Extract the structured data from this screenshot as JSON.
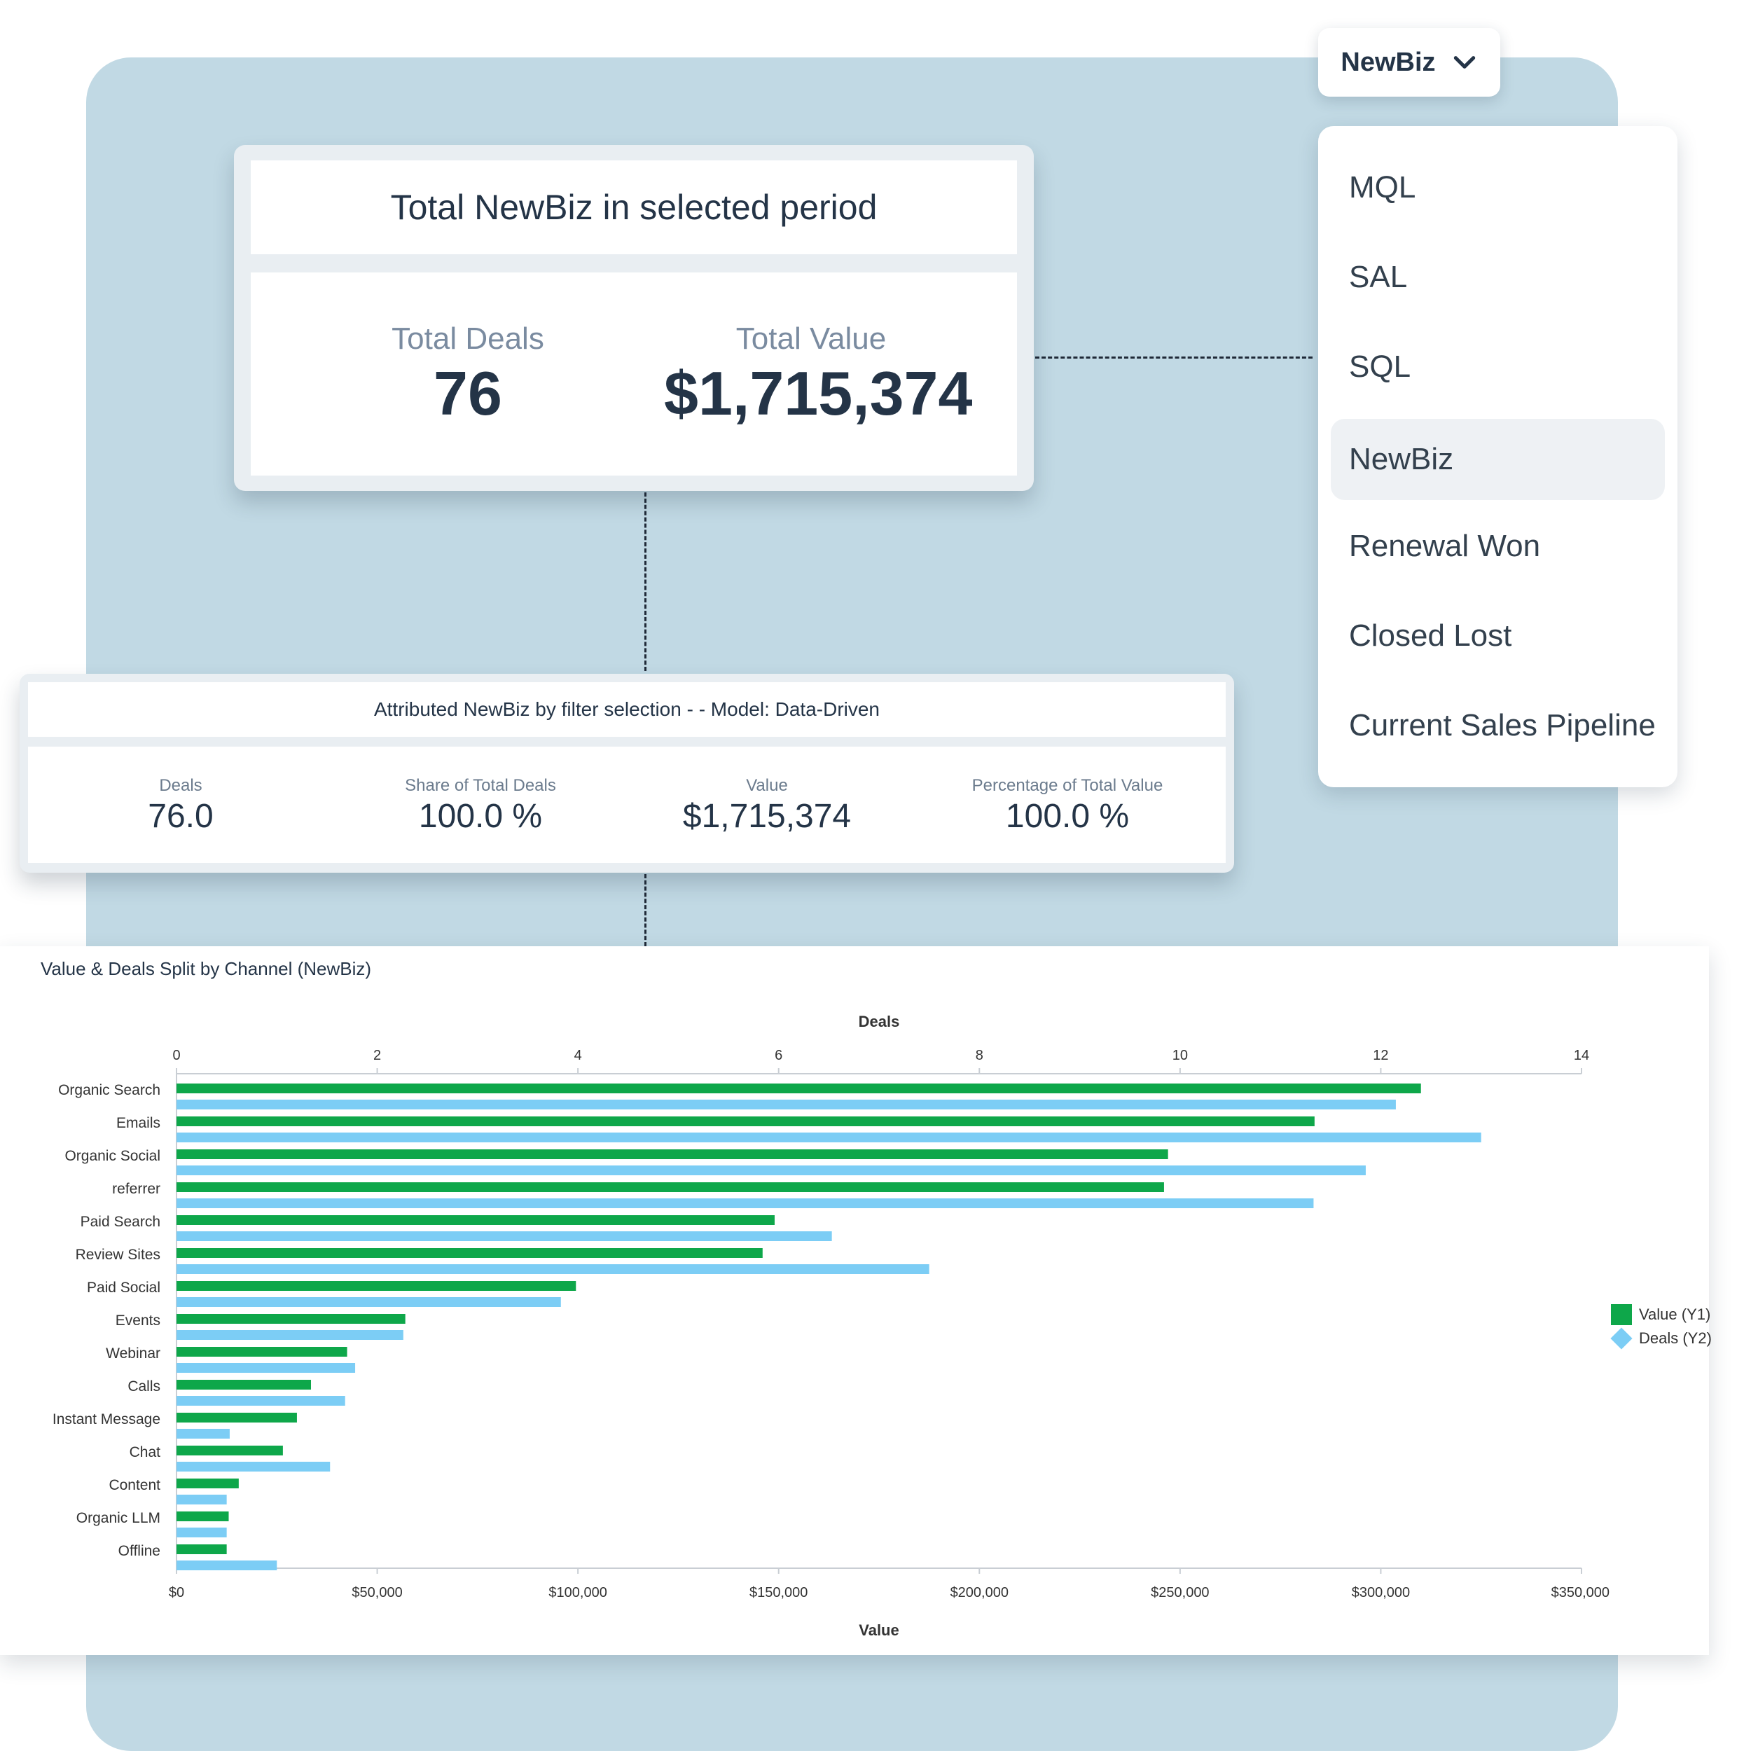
{
  "dropdown": {
    "selected": "NewBiz",
    "options": [
      "MQL",
      "SAL",
      "SQL",
      "NewBiz",
      "Renewal Won",
      "Closed Lost",
      "Current Sales Pipeline"
    ]
  },
  "total_card": {
    "title": "Total NewBiz in selected period",
    "deals_label": "Total Deals",
    "deals_value": "76",
    "value_label": "Total Value",
    "value_value": "$1,715,374"
  },
  "attributed_card": {
    "title": "Attributed NewBiz by filter selection - - Model: Data-Driven",
    "metrics": [
      {
        "label": "Deals",
        "value": "76.0"
      },
      {
        "label": "Share of Total Deals",
        "value": "100.0 %"
      },
      {
        "label": "Value",
        "value": "$1,715,374"
      },
      {
        "label": "Percentage of Total Value",
        "value": "100.0 %"
      }
    ]
  },
  "colors": {
    "value_series": "#0ea74a",
    "deals_series": "#7ccdf5",
    "panel_bg": "#c1d9e4"
  },
  "chart_data": {
    "type": "bar",
    "orientation": "horizontal",
    "title": "Value & Deals Split by Channel (NewBiz)",
    "categories": [
      "Organic Search",
      "Emails",
      "Organic Social",
      "referrer",
      "Paid Search",
      "Review Sites",
      "Paid Social",
      "Events",
      "Webinar",
      "Calls",
      "Instant Message",
      "Chat",
      "Content",
      "Organic LLM",
      "Offline"
    ],
    "series": [
      {
        "name": "Value (Y1)",
        "axis": "bottom",
        "values": [
          310000,
          283500,
          247000,
          246000,
          149000,
          146000,
          99500,
          57000,
          42500,
          33500,
          30000,
          26500,
          15500,
          13000,
          12500
        ]
      },
      {
        "name": "Deals (Y2)",
        "axis": "top",
        "values": [
          12.15,
          13.0,
          11.85,
          11.33,
          6.53,
          7.5,
          3.83,
          2.26,
          1.78,
          1.68,
          0.53,
          1.53,
          0.5,
          0.5,
          1.0
        ]
      }
    ],
    "top_axis": {
      "label": "Deals",
      "range": [
        0,
        14
      ],
      "ticks": [
        "0",
        "2",
        "4",
        "6",
        "8",
        "10",
        "12",
        "14"
      ]
    },
    "bottom_axis": {
      "label": "Value",
      "range": [
        0,
        350000
      ],
      "ticks": [
        "$0",
        "$50,000",
        "$100,000",
        "$150,000",
        "$200,000",
        "$250,000",
        "$300,000",
        "$350,000"
      ]
    },
    "legend": "right",
    "grid": false
  }
}
